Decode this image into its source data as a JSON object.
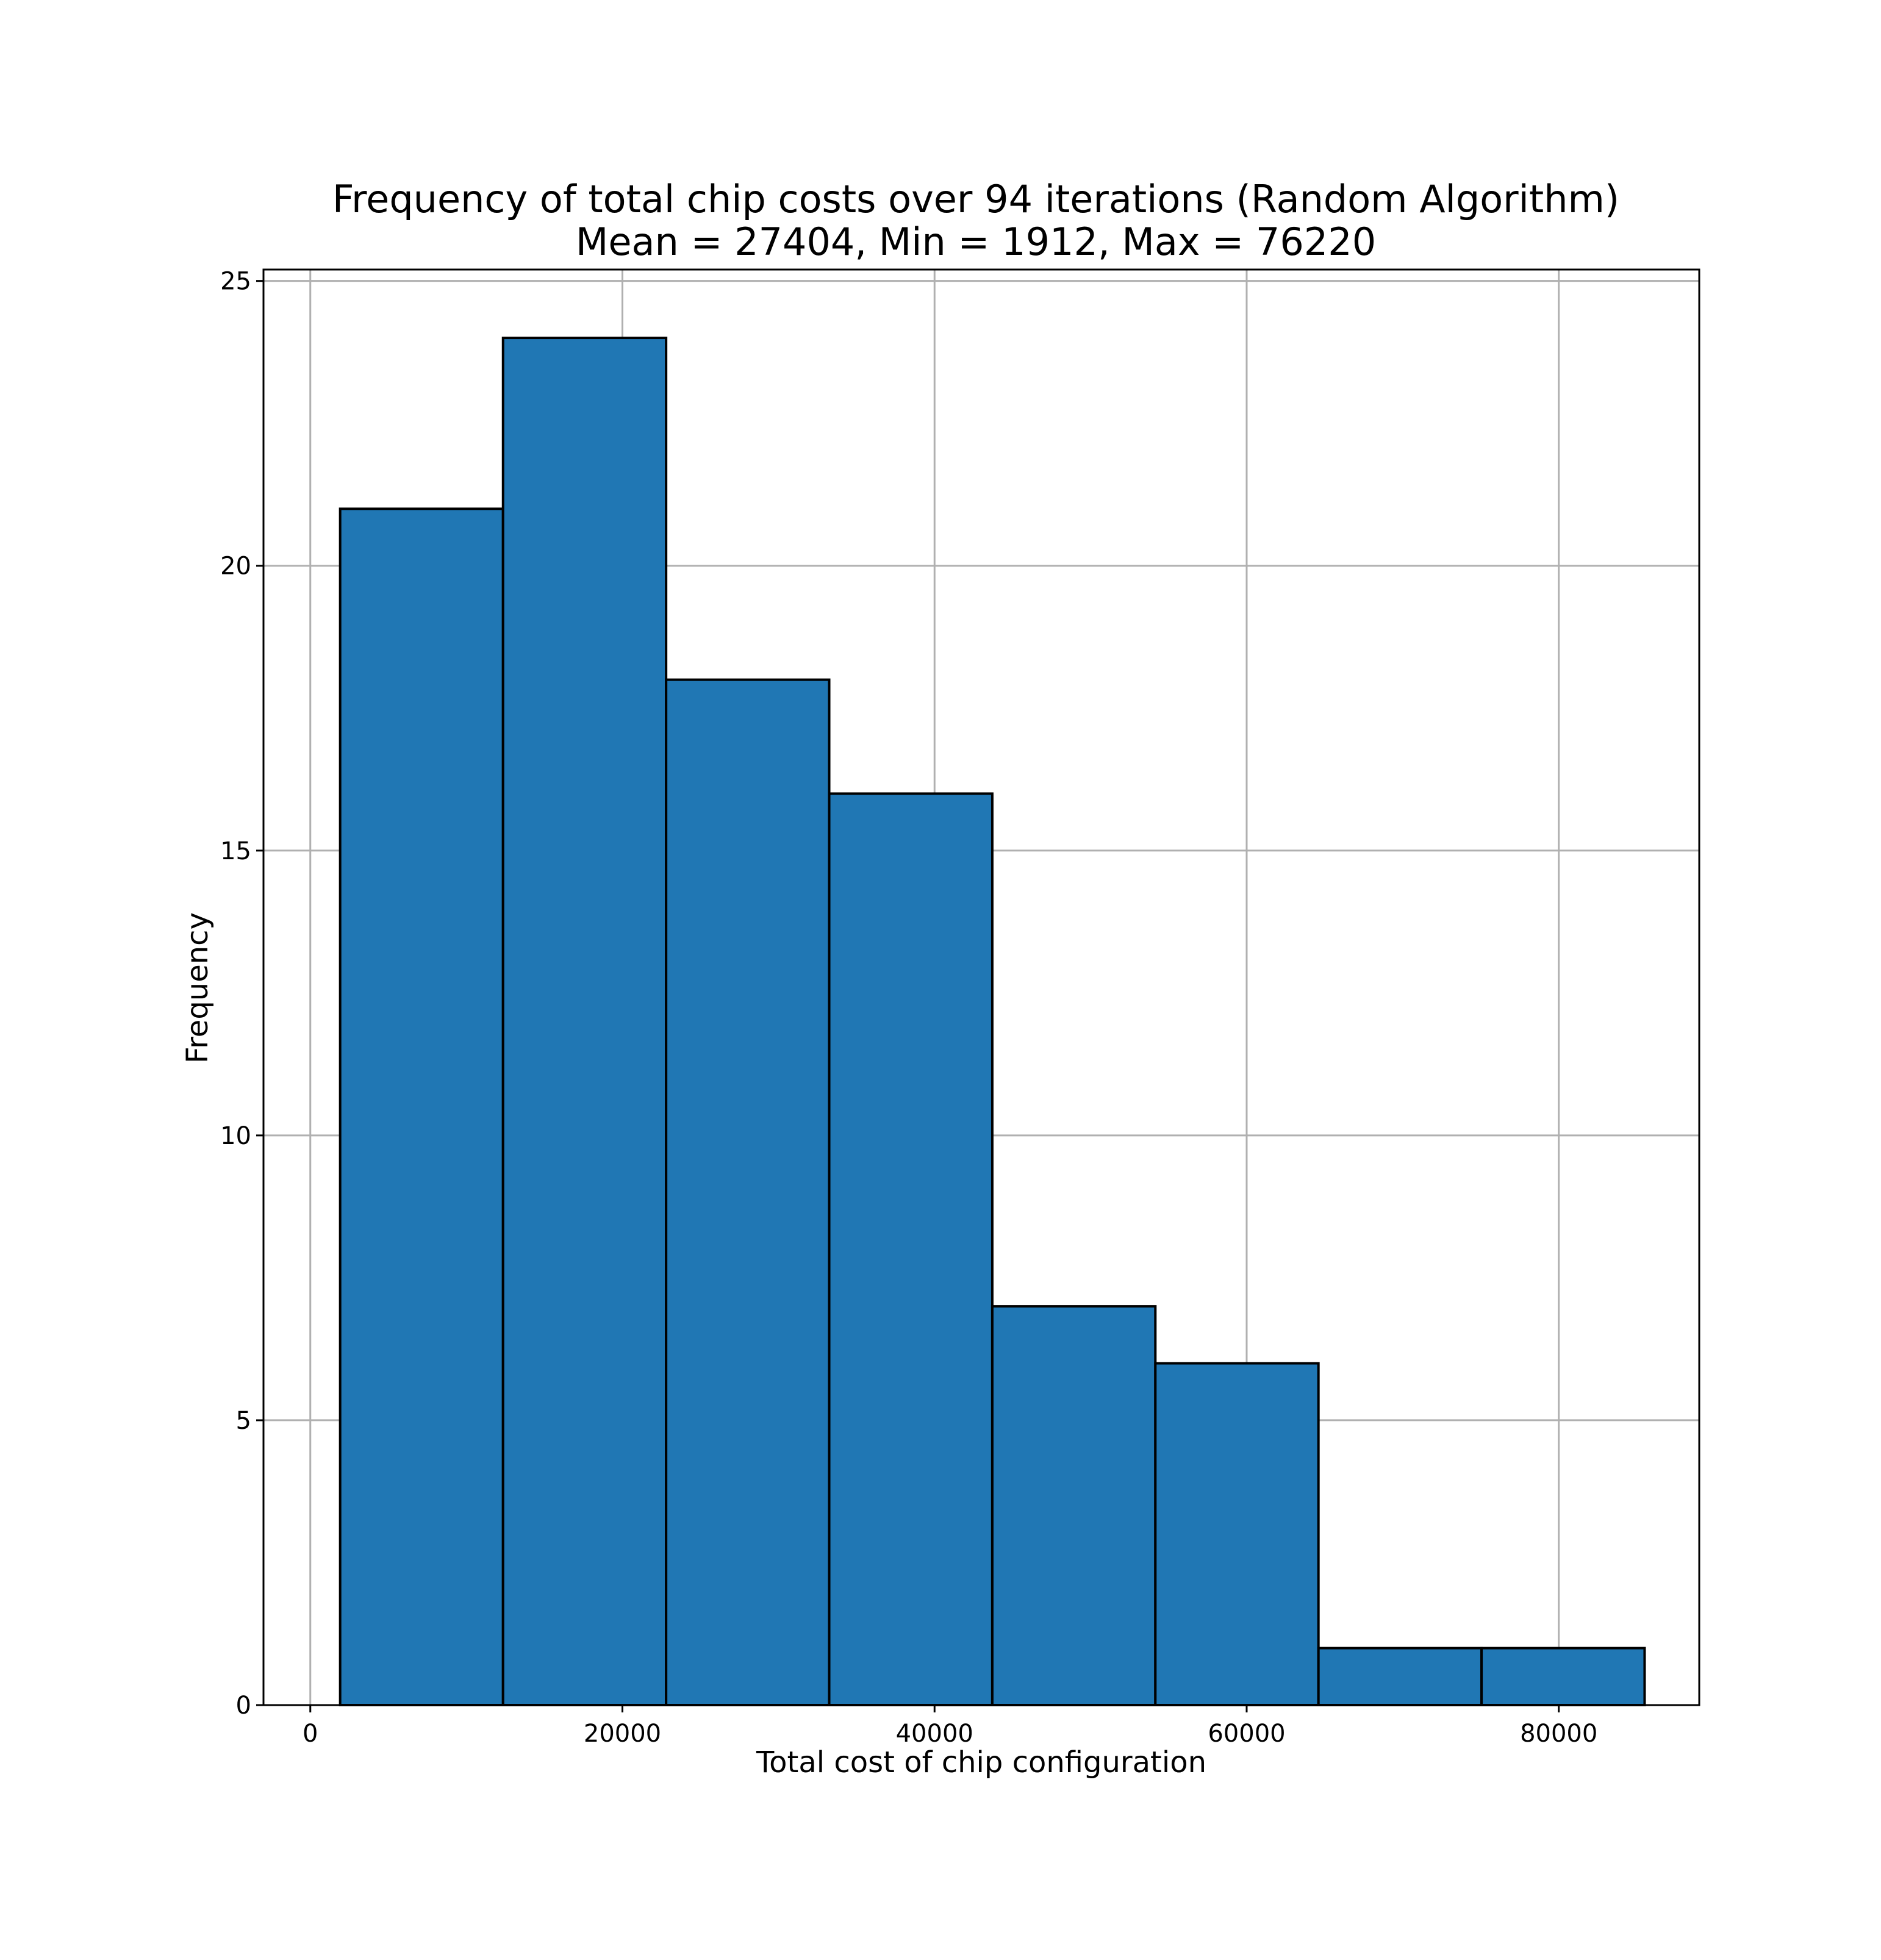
{
  "chart_data": {
    "type": "bar",
    "title": "Frequency of total chip costs over 94 iterations (Random Algorithm)",
    "subtitle": "Mean = 27404, Min = 1912, Max = 76220",
    "xlabel": "Total cost of chip configuration",
    "ylabel": "Frequency",
    "xlim": [
      -3000,
      89000
    ],
    "ylim": [
      0,
      25.2
    ],
    "xticks": [
      0,
      20000,
      40000,
      60000,
      80000
    ],
    "xtick_labels": [
      "0",
      "20000",
      "40000",
      "60000",
      "80000"
    ],
    "yticks": [
      0,
      5,
      10,
      15,
      20,
      25
    ],
    "ytick_labels": [
      "0",
      "5",
      "10",
      "15",
      "20",
      "25"
    ],
    "bins": [
      {
        "x0": 1912,
        "x1": 12350,
        "value": 21
      },
      {
        "x0": 12350,
        "x1": 22800,
        "value": 24
      },
      {
        "x0": 22800,
        "x1": 33250,
        "value": 18
      },
      {
        "x0": 33250,
        "x1": 43700,
        "value": 16
      },
      {
        "x0": 43700,
        "x1": 54150,
        "value": 7
      },
      {
        "x0": 54150,
        "x1": 64600,
        "value": 6
      },
      {
        "x0": 64600,
        "x1": 75050,
        "value": 1
      },
      {
        "x0": 75050,
        "x1": 85500,
        "value": 1
      }
    ],
    "grid": true,
    "bar_color": "#2077b4",
    "edge_color": "#000000",
    "grid_color": "#b0b0b0"
  }
}
